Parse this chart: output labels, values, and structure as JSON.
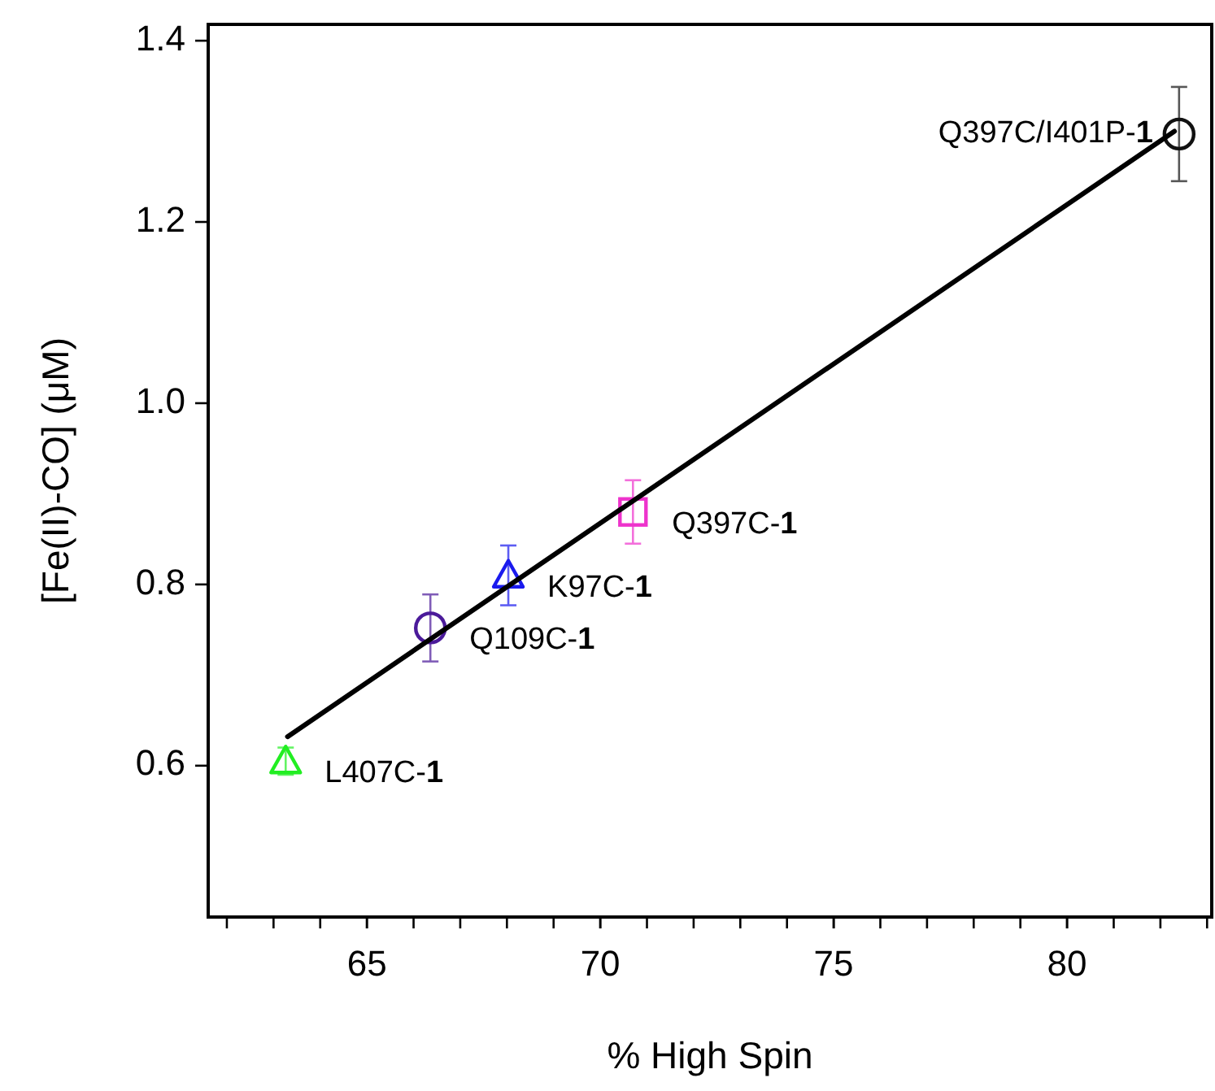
{
  "chart_data": {
    "type": "scatter",
    "xlabel": "% High Spin",
    "ylabel": "[Fe(II)-CO] (μM)",
    "xlim": [
      61.6,
      83.1
    ],
    "xticks": [
      65,
      70,
      75,
      80
    ],
    "ylim": [
      0.433,
      1.418
    ],
    "yticks": [
      0.6,
      0.8,
      {
        "value": 1.0,
        "label": "1.0"
      },
      1.2,
      1.4
    ],
    "grid": false,
    "series": [
      {
        "name": "L407C-1",
        "color": "#22ee22",
        "marker": "triangle",
        "x": [
          63.26
        ],
        "values": [
          0.605
        ],
        "errors": [
          0.015
        ]
      },
      {
        "name": "Q109C-1",
        "color": "#4b1a9a",
        "marker": "circle",
        "x": [
          66.36
        ],
        "values": [
          0.752
        ],
        "errors": [
          0.037
        ]
      },
      {
        "name": "K97C-1",
        "color": "#1a1aee",
        "marker": "triangle",
        "x": [
          68.03
        ],
        "values": [
          0.81
        ],
        "errors": [
          0.033
        ]
      },
      {
        "name": "Q397C-1",
        "color": "#ee33cc",
        "marker": "square",
        "x": [
          70.7
        ],
        "values": [
          0.88
        ],
        "errors": [
          0.035
        ]
      },
      {
        "name": "Q397C/I401P-1",
        "color": "#111111",
        "marker": "circle",
        "x": [
          82.4
        ],
        "values": [
          1.297
        ],
        "errors": [
          0.052
        ]
      },
      {
        "type": "line",
        "color": "#000000",
        "x": [
          63.3,
          82.3
        ],
        "values": [
          0.632,
          1.3
        ]
      }
    ]
  }
}
